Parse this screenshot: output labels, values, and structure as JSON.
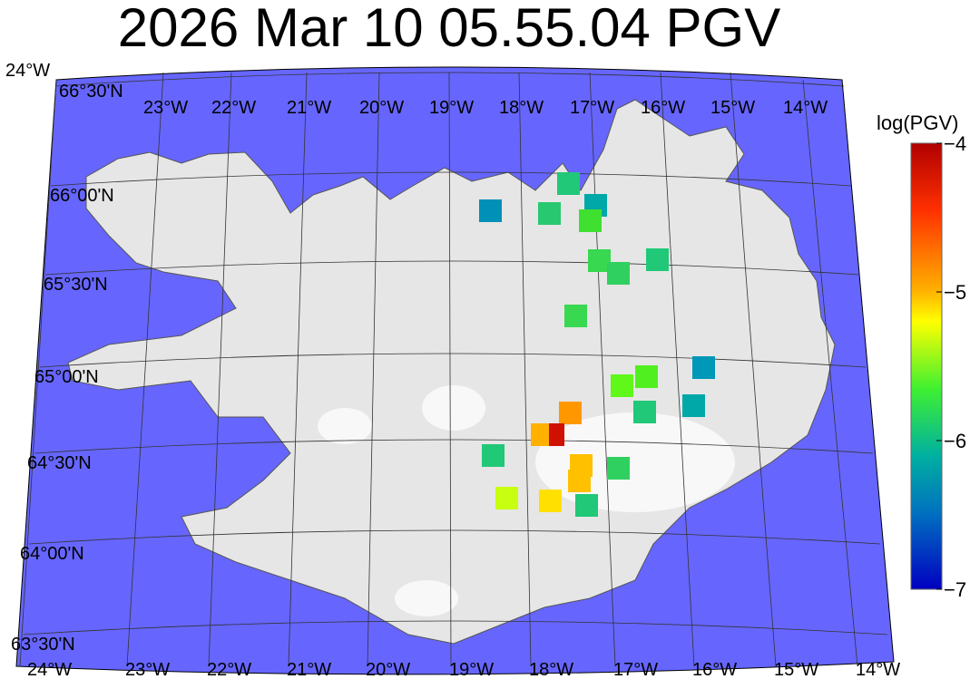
{
  "title": "2026 Mar 10 05.55.04 PGV",
  "map": {
    "ocean_color": "#6666ff",
    "land_color": "#e6e6e6",
    "river_color": "#6a6aff",
    "lat_labels": [
      "66°30'N",
      "66°00'N",
      "65°30'N",
      "65°00'N",
      "64°30'N",
      "64°00'N",
      "63°30'N"
    ],
    "lon_labels_top": [
      "24°W",
      "23°W",
      "22°W",
      "21°W",
      "20°W",
      "19°W",
      "18°W",
      "17°W",
      "16°W",
      "15°W",
      "14°W"
    ],
    "lon_labels_bottom": [
      "24°W",
      "23°W",
      "22°W",
      "21°W",
      "20°W",
      "19°W",
      "18°W",
      "17°W",
      "16°W",
      "15°W",
      "14°W"
    ]
  },
  "colorbar": {
    "label": "log(PGV)",
    "min": -7,
    "max": -4,
    "ticks": [
      "−4",
      "−5",
      "−6",
      "−7"
    ],
    "colormap": "jet"
  },
  "stations": [
    {
      "log_pgv": -6.7,
      "color": "#0090b8"
    },
    {
      "log_pgv": -6.2,
      "color": "#20c878"
    },
    {
      "log_pgv": -6.2,
      "color": "#28c870"
    },
    {
      "log_pgv": -6.5,
      "color": "#00a8a8"
    },
    {
      "log_pgv": -5.95,
      "color": "#40e030"
    },
    {
      "log_pgv": -6.05,
      "color": "#38d850"
    },
    {
      "log_pgv": -6.1,
      "color": "#30d060"
    },
    {
      "log_pgv": -6.2,
      "color": "#20c878"
    },
    {
      "log_pgv": -6.05,
      "color": "#38d850"
    },
    {
      "log_pgv": -6.7,
      "color": "#0098b8"
    },
    {
      "log_pgv": -5.9,
      "color": "#50f020"
    },
    {
      "log_pgv": -5.85,
      "color": "#60f818"
    },
    {
      "log_pgv": -6.5,
      "color": "#00a8a8"
    },
    {
      "log_pgv": -6.2,
      "color": "#20c878"
    },
    {
      "log_pgv": -4.9,
      "color": "#ff9800"
    },
    {
      "log_pgv": -5.0,
      "color": "#ffb000"
    },
    {
      "log_pgv": -4.15,
      "color": "#d01000"
    },
    {
      "log_pgv": -6.2,
      "color": "#20c878"
    },
    {
      "log_pgv": -5.1,
      "color": "#ffc000"
    },
    {
      "log_pgv": -5.1,
      "color": "#ffc000"
    },
    {
      "log_pgv": -6.1,
      "color": "#30d060"
    },
    {
      "log_pgv": -5.6,
      "color": "#c8ff10"
    },
    {
      "log_pgv": -5.3,
      "color": "#ffe000"
    },
    {
      "log_pgv": -6.2,
      "color": "#20c878"
    }
  ]
}
